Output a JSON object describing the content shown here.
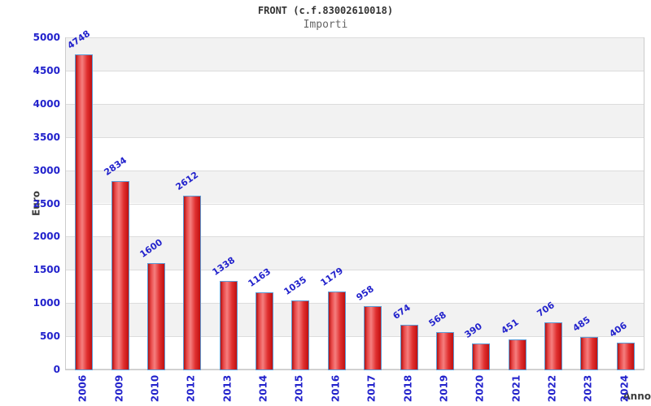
{
  "header": {
    "title": "FRONT (c.f.83002610018)",
    "subtitle": "Importi"
  },
  "chart_data": {
    "type": "bar",
    "title": "FRONT (c.f.83002610018)",
    "subtitle": "Importi",
    "xlabel": "Anno",
    "ylabel": "Euro",
    "categories": [
      "2006",
      "2009",
      "2010",
      "2012",
      "2013",
      "2014",
      "2015",
      "2016",
      "2017",
      "2018",
      "2019",
      "2020",
      "2021",
      "2022",
      "2023",
      "2024"
    ],
    "values": [
      4748,
      2834,
      1600,
      2612,
      1338,
      1163,
      1035,
      1179,
      958,
      674,
      568,
      390,
      451,
      706,
      485,
      406
    ],
    "ylim": [
      0,
      5000
    ],
    "ytick_step": 500,
    "yticks": [
      0,
      500,
      1000,
      1500,
      2000,
      2500,
      3000,
      3500,
      4000,
      4500,
      5000
    ],
    "grid": "horizontal gridlines every 500 with alternating gray/white bands, gray band at top",
    "legend": "none",
    "bar_value_labels": "shown above bars, rotated, blue",
    "colors": {
      "bar_edge_dark": "#b01212",
      "bar_center_light": "#f57f7f",
      "bar_border": "#5b9bd5",
      "tick_label_blue": "#2222cc",
      "band_gray": "#f2f2f2",
      "band_white": "#ffffff",
      "gridline": "#dcdcdc",
      "plot_border": "#cccccc",
      "title_color": "#333333",
      "subtitle_color": "#666666",
      "axis_label_dark": "#3c3c3c",
      "background": "#ffffff"
    }
  }
}
